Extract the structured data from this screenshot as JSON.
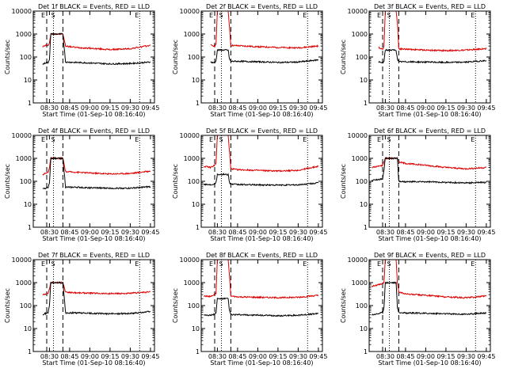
{
  "colors": {
    "events": "#000000",
    "lld": "#dd0000",
    "marker_dash": "#000000",
    "marker_dot": "#000000"
  },
  "chart_data": [
    {
      "type": "line",
      "title": "Det 1f BLACK = Events, RED = LLD",
      "xlabel": "Start Time (01-Sep-10 08:16:40)",
      "ylabel": "Counts/sec",
      "yscale": "log",
      "ylim": [
        1,
        10000
      ],
      "xticks": [
        "08:30",
        "08:45",
        "09:00",
        "09:15",
        "09:30",
        "09:45"
      ],
      "yticks": [
        "1",
        "10",
        "100",
        "1000",
        "10000"
      ],
      "markers": {
        "dash": [
          "08:28",
          "08:40"
        ],
        "dot": [
          "08:33",
          "09:37"
        ],
        "labels": [
          "E",
          "S",
          "E"
        ]
      },
      "series": [
        {
          "name": "LLD",
          "color": "red",
          "x": [
            "08:25",
            "08:27",
            "08:29",
            "08:30",
            "08:31",
            "08:40",
            "08:42",
            "08:50",
            "09:00",
            "09:15",
            "09:30",
            "09:45"
          ],
          "values": [
            280,
            320,
            330,
            400,
            1000,
            1000,
            300,
            260,
            240,
            210,
            230,
            320
          ]
        },
        {
          "name": "Events",
          "color": "black",
          "x": [
            "08:25",
            "08:27",
            "08:29",
            "08:30",
            "08:31",
            "08:40",
            "08:42",
            "08:50",
            "09:00",
            "09:15",
            "09:30",
            "09:45"
          ],
          "values": [
            48,
            55,
            58,
            80,
            1000,
            1000,
            60,
            58,
            55,
            50,
            52,
            60
          ]
        }
      ]
    },
    {
      "type": "line",
      "title": "Det 2f BLACK = Events, RED = LLD",
      "xlabel": "Start Time (01-Sep-10 08:16:40)",
      "ylabel": "Counts/sec",
      "yscale": "log",
      "ylim": [
        1,
        10000
      ],
      "xticks": [
        "08:30",
        "08:45",
        "09:00",
        "09:15",
        "09:30",
        "09:45"
      ],
      "yticks": [
        "1",
        "10",
        "100",
        "1000",
        "10000"
      ],
      "markers": {
        "dash": [
          "08:28",
          "08:40"
        ],
        "dot": [
          "08:33",
          "09:37"
        ],
        "labels": [
          "E",
          "S",
          "E"
        ]
      },
      "series": [
        {
          "name": "LLD",
          "color": "red",
          "x": [
            "08:25",
            "08:28",
            "08:29",
            "08:30",
            "08:38",
            "08:39",
            "08:40",
            "08:45",
            "09:00",
            "09:15",
            "09:30",
            "09:45"
          ],
          "values": [
            330,
            300,
            350,
            10000,
            10000,
            2000,
            320,
            310,
            280,
            260,
            250,
            300
          ]
        },
        {
          "name": "Events",
          "color": "black",
          "x": [
            "08:25",
            "08:28",
            "08:29",
            "08:30",
            "08:38",
            "08:39",
            "08:40",
            "08:45",
            "09:00",
            "09:15",
            "09:30",
            "09:45"
          ],
          "values": [
            60,
            55,
            70,
            200,
            200,
            80,
            65,
            65,
            62,
            58,
            60,
            75
          ]
        }
      ]
    },
    {
      "type": "line",
      "title": "Det 3f BLACK = Events, RED = LLD",
      "xlabel": "Start Time (01-Sep-10 08:16:40)",
      "ylabel": "Counts/sec",
      "yscale": "log",
      "ylim": [
        1,
        10000
      ],
      "xticks": [
        "08:30",
        "08:45",
        "09:00",
        "09:15",
        "09:30",
        "09:45"
      ],
      "yticks": [
        "1",
        "10",
        "100",
        "1000",
        "10000"
      ],
      "markers": {
        "dash": [
          "08:28",
          "08:40"
        ],
        "dot": [
          "08:33",
          "09:37"
        ],
        "labels": [
          "E",
          "S",
          "E"
        ]
      },
      "series": [
        {
          "name": "LLD",
          "color": "red",
          "x": [
            "08:25",
            "08:28",
            "08:29",
            "08:30",
            "08:38",
            "08:39",
            "08:40",
            "08:45",
            "09:00",
            "09:15",
            "09:30",
            "09:45"
          ],
          "values": [
            260,
            220,
            300,
            10000,
            10000,
            3000,
            230,
            220,
            200,
            190,
            200,
            230
          ]
        },
        {
          "name": "Events",
          "color": "black",
          "x": [
            "08:25",
            "08:28",
            "08:29",
            "08:30",
            "08:38",
            "08:39",
            "08:40",
            "08:45",
            "09:00",
            "09:15",
            "09:30",
            "09:45"
          ],
          "values": [
            60,
            55,
            65,
            200,
            200,
            80,
            62,
            62,
            60,
            58,
            60,
            70
          ]
        }
      ]
    },
    {
      "type": "line",
      "title": "Det 4f BLACK = Events, RED = LLD",
      "xlabel": "Start Time (01-Sep-10 08:16:40)",
      "ylabel": "Counts/sec",
      "yscale": "log",
      "ylim": [
        1,
        10000
      ],
      "xticks": [
        "08:30",
        "08:45",
        "09:00",
        "09:15",
        "09:30",
        "09:45"
      ],
      "yticks": [
        "1",
        "10",
        "100",
        "1000",
        "10000"
      ],
      "markers": {
        "dash": [
          "08:28",
          "08:40"
        ],
        "dot": [
          "08:33",
          "09:37"
        ],
        "labels": [
          "E",
          "S",
          "E"
        ]
      },
      "series": [
        {
          "name": "LLD",
          "color": "red",
          "x": [
            "08:25",
            "08:27",
            "08:29",
            "08:30",
            "08:31",
            "08:40",
            "08:42",
            "08:50",
            "09:00",
            "09:15",
            "09:30",
            "09:45"
          ],
          "values": [
            200,
            220,
            250,
            400,
            1000,
            1000,
            260,
            250,
            230,
            210,
            220,
            280
          ]
        },
        {
          "name": "Events",
          "color": "black",
          "x": [
            "08:25",
            "08:27",
            "08:29",
            "08:30",
            "08:31",
            "08:40",
            "08:42",
            "08:50",
            "09:00",
            "09:15",
            "09:30",
            "09:45"
          ],
          "values": [
            45,
            50,
            55,
            80,
            1000,
            1000,
            55,
            55,
            52,
            50,
            50,
            58
          ]
        }
      ]
    },
    {
      "type": "line",
      "title": "Det 5f BLACK = Events, RED = LLD",
      "xlabel": "Start Time (01-Sep-10 08:16:40)",
      "ylabel": "Counts/sec",
      "yscale": "log",
      "ylim": [
        1,
        10000
      ],
      "xticks": [
        "08:30",
        "08:45",
        "09:00",
        "09:15",
        "09:30",
        "09:45"
      ],
      "yticks": [
        "1",
        "10",
        "100",
        "1000",
        "10000"
      ],
      "markers": {
        "dash": [
          "08:28",
          "08:40"
        ],
        "dot": [
          "08:33",
          "09:37"
        ],
        "labels": [
          "E",
          "S",
          "E"
        ]
      },
      "series": [
        {
          "name": "LLD",
          "color": "red",
          "x": [
            "08:20",
            "08:25",
            "08:28",
            "08:29",
            "08:30",
            "08:38",
            "08:39",
            "08:40",
            "08:45",
            "09:00",
            "09:15",
            "09:30",
            "09:45"
          ],
          "values": [
            450,
            400,
            500,
            600,
            10000,
            10000,
            2000,
            350,
            320,
            300,
            280,
            300,
            450
          ]
        },
        {
          "name": "Events",
          "color": "black",
          "x": [
            "08:20",
            "08:25",
            "08:28",
            "08:29",
            "08:30",
            "08:38",
            "08:39",
            "08:40",
            "08:45",
            "09:00",
            "09:15",
            "09:30",
            "09:45"
          ],
          "values": [
            75,
            70,
            80,
            90,
            200,
            200,
            90,
            75,
            72,
            70,
            68,
            70,
            85
          ]
        }
      ]
    },
    {
      "type": "line",
      "title": "Det 6f BLACK = Events, RED = LLD",
      "xlabel": "Start Time (01-Sep-10 08:16:40)",
      "ylabel": "Counts/sec",
      "yscale": "log",
      "ylim": [
        1,
        10000
      ],
      "xticks": [
        "08:30",
        "08:45",
        "09:00",
        "09:15",
        "09:30",
        "09:45"
      ],
      "yticks": [
        "1",
        "10",
        "100",
        "1000",
        "10000"
      ],
      "markers": {
        "dash": [
          "08:28",
          "08:40"
        ],
        "dot": [
          "08:33",
          "09:37"
        ],
        "labels": [
          "E",
          "S",
          "E"
        ]
      },
      "series": [
        {
          "name": "LLD",
          "color": "red",
          "x": [
            "08:20",
            "08:25",
            "08:28",
            "08:29",
            "08:30",
            "08:38",
            "08:39",
            "08:40",
            "08:45",
            "09:00",
            "09:15",
            "09:30",
            "09:45"
          ],
          "values": [
            400,
            450,
            500,
            700,
            1000,
            1000,
            1000,
            700,
            600,
            500,
            400,
            350,
            400
          ]
        },
        {
          "name": "Events",
          "color": "black",
          "x": [
            "08:20",
            "08:25",
            "08:28",
            "08:29",
            "08:30",
            "08:38",
            "08:39",
            "08:40",
            "08:45",
            "09:00",
            "09:15",
            "09:30",
            "09:45"
          ],
          "values": [
            110,
            120,
            130,
            300,
            1000,
            1000,
            1000,
            100,
            95,
            95,
            90,
            85,
            90
          ]
        }
      ]
    },
    {
      "type": "line",
      "title": "Det 7f BLACK = Events, RED = LLD",
      "xlabel": "Start Time (01-Sep-10 08:16:40)",
      "ylabel": "Counts/sec",
      "yscale": "log",
      "ylim": [
        1,
        10000
      ],
      "xticks": [
        "08:30",
        "08:45",
        "09:00",
        "09:15",
        "09:30",
        "09:45"
      ],
      "yticks": [
        "1",
        "10",
        "100",
        "1000",
        "10000"
      ],
      "markers": {
        "dash": [
          "08:28",
          "08:40"
        ],
        "dot": [
          "08:33",
          "09:37"
        ],
        "labels": [
          "E",
          "S",
          "E"
        ]
      },
      "series": [
        {
          "name": "LLD",
          "color": "red",
          "x": [
            "08:25",
            "08:27",
            "08:29",
            "08:30",
            "08:31",
            "08:40",
            "08:42",
            "08:50",
            "09:00",
            "09:15",
            "09:30",
            "09:45"
          ],
          "values": [
            300,
            320,
            350,
            500,
            1000,
            1000,
            380,
            360,
            350,
            330,
            340,
            400
          ]
        },
        {
          "name": "Events",
          "color": "black",
          "x": [
            "08:25",
            "08:27",
            "08:29",
            "08:30",
            "08:31",
            "08:40",
            "08:42",
            "08:50",
            "09:00",
            "09:15",
            "09:30",
            "09:45"
          ],
          "values": [
            40,
            45,
            50,
            100,
            1000,
            1000,
            48,
            48,
            46,
            44,
            45,
            55
          ]
        }
      ]
    },
    {
      "type": "line",
      "title": "Det 8f BLACK = Events, RED = LLD",
      "xlabel": "Start Time (01-Sep-10 08:16:40)",
      "ylabel": "Counts/sec",
      "yscale": "log",
      "ylim": [
        1,
        10000
      ],
      "xticks": [
        "08:30",
        "08:45",
        "09:00",
        "09:15",
        "09:30",
        "09:45"
      ],
      "yticks": [
        "1",
        "10",
        "100",
        "1000",
        "10000"
      ],
      "markers": {
        "dash": [
          "08:28",
          "08:40"
        ],
        "dot": [
          "08:33",
          "09:37"
        ],
        "labels": [
          "E",
          "S",
          "E"
        ]
      },
      "series": [
        {
          "name": "LLD",
          "color": "red",
          "x": [
            "08:20",
            "08:25",
            "08:28",
            "08:29",
            "08:30",
            "08:38",
            "08:39",
            "08:40",
            "08:45",
            "09:00",
            "09:15",
            "09:30",
            "09:45"
          ],
          "values": [
            260,
            250,
            300,
            350,
            10000,
            10000,
            2000,
            260,
            240,
            230,
            220,
            230,
            280
          ]
        },
        {
          "name": "Events",
          "color": "black",
          "x": [
            "08:20",
            "08:25",
            "08:28",
            "08:29",
            "08:30",
            "08:38",
            "08:39",
            "08:40",
            "08:45",
            "09:00",
            "09:15",
            "09:30",
            "09:45"
          ],
          "values": [
            40,
            38,
            42,
            50,
            200,
            200,
            60,
            40,
            40,
            38,
            36,
            38,
            45
          ]
        }
      ]
    },
    {
      "type": "line",
      "title": "Det 9f BLACK = Events, RED = LLD",
      "xlabel": "Start Time (01-Sep-10 08:16:40)",
      "ylabel": "Counts/sec",
      "yscale": "log",
      "ylim": [
        1,
        10000
      ],
      "xticks": [
        "08:30",
        "08:45",
        "09:00",
        "09:15",
        "09:30",
        "09:45"
      ],
      "yticks": [
        "1",
        "10",
        "100",
        "1000",
        "10000"
      ],
      "markers": {
        "dash": [
          "08:28",
          "08:40"
        ],
        "dot": [
          "08:33",
          "09:37"
        ],
        "labels": [
          "E",
          "S",
          "E"
        ]
      },
      "series": [
        {
          "name": "LLD",
          "color": "red",
          "x": [
            "08:20",
            "08:25",
            "08:28",
            "08:29",
            "08:30",
            "08:38",
            "08:39",
            "08:40",
            "08:45",
            "09:00",
            "09:15",
            "09:30",
            "09:45"
          ],
          "values": [
            700,
            800,
            900,
            1000,
            10000,
            10000,
            1000,
            400,
            320,
            280,
            240,
            220,
            260
          ]
        },
        {
          "name": "Events",
          "color": "black",
          "x": [
            "08:20",
            "08:25",
            "08:28",
            "08:29",
            "08:30",
            "08:38",
            "08:39",
            "08:40",
            "08:45",
            "09:00",
            "09:15",
            "09:30",
            "09:45"
          ],
          "values": [
            40,
            45,
            50,
            80,
            1000,
            1000,
            80,
            50,
            48,
            46,
            44,
            42,
            48
          ]
        }
      ]
    }
  ]
}
